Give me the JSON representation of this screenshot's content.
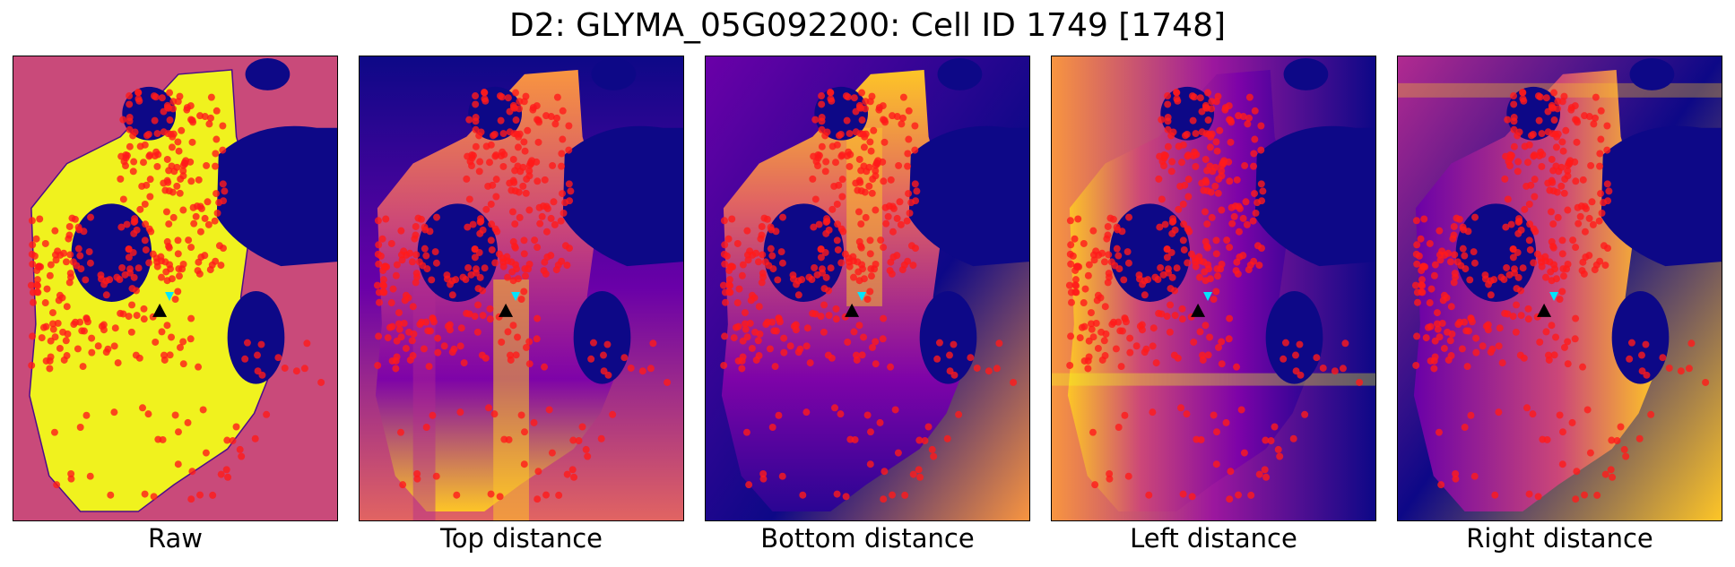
{
  "figure": {
    "title": "D2: GLYMA_05G092200: Cell ID 1749 [1748]"
  },
  "panels": [
    {
      "id": "raw",
      "label": "Raw"
    },
    {
      "id": "top",
      "label": "Top distance"
    },
    {
      "id": "bottom",
      "label": "Bottom distance"
    },
    {
      "id": "left",
      "label": "Left distance"
    },
    {
      "id": "right",
      "label": "Right distance"
    }
  ],
  "colors": {
    "cell_fill": "#f0f21e",
    "background_raw": "#c94a7a",
    "nuclei": "#0d0887",
    "dots": "#ff1a1a",
    "center_marker": "#000000",
    "tip_marker": "#00e5ff"
  }
}
